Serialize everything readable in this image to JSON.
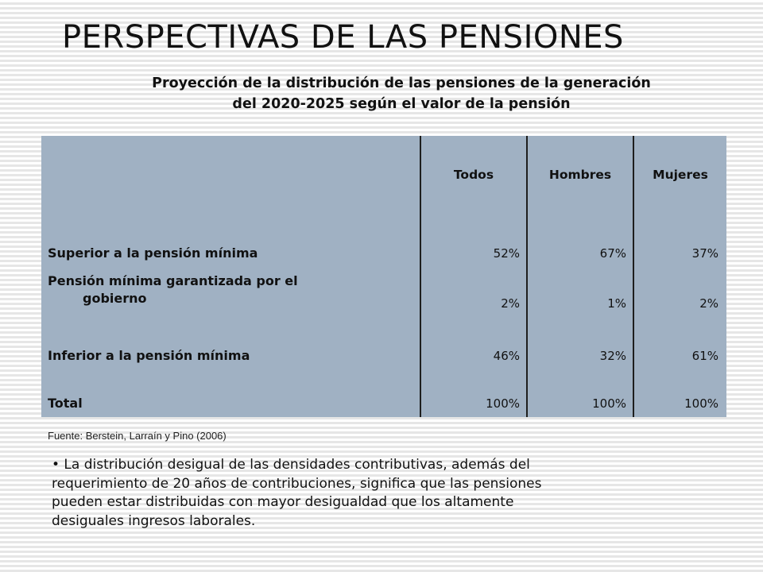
{
  "slide": {
    "title": "PERSPECTIVAS DE LAS PENSIONES",
    "subtitle_line1": "Proyección de la distribución de las pensiones de la generación",
    "subtitle_line2": "del 2020-2025  según el valor de la pensión"
  },
  "table": {
    "columns": [
      "Todos",
      "Hombres",
      "Mujeres"
    ],
    "rows": [
      {
        "label_line1": "Superior a la pensión mínima",
        "label_line2": "",
        "values": [
          "52%",
          "67%",
          "37%"
        ]
      },
      {
        "label_line1": "Pensión mínima garantizada por el",
        "label_line2": "gobierno",
        "values": [
          "2%",
          "1%",
          "2%"
        ]
      },
      {
        "label_line1": "Inferior a la pensión mínima",
        "label_line2": "",
        "values": [
          "46%",
          "32%",
          "61%"
        ]
      },
      {
        "label_line1": "Total",
        "label_line2": "",
        "values": [
          "100%",
          "100%",
          "100%"
        ]
      }
    ]
  },
  "source": "Fuente: Berstein, Larraín y Pino (2006)",
  "bullet": {
    "line1": "• La distribución desigual de las densidades contributivas, además del",
    "line2": "requerimiento de 20 años de contribuciones, significa que las pensiones",
    "line3": "pueden estar distribuidas con mayor desigualdad que los altamente",
    "line4": "desiguales  ingresos laborales."
  },
  "colors": {
    "table_fill": "#a0b1c3",
    "column_rule": "#1e1e1e"
  }
}
